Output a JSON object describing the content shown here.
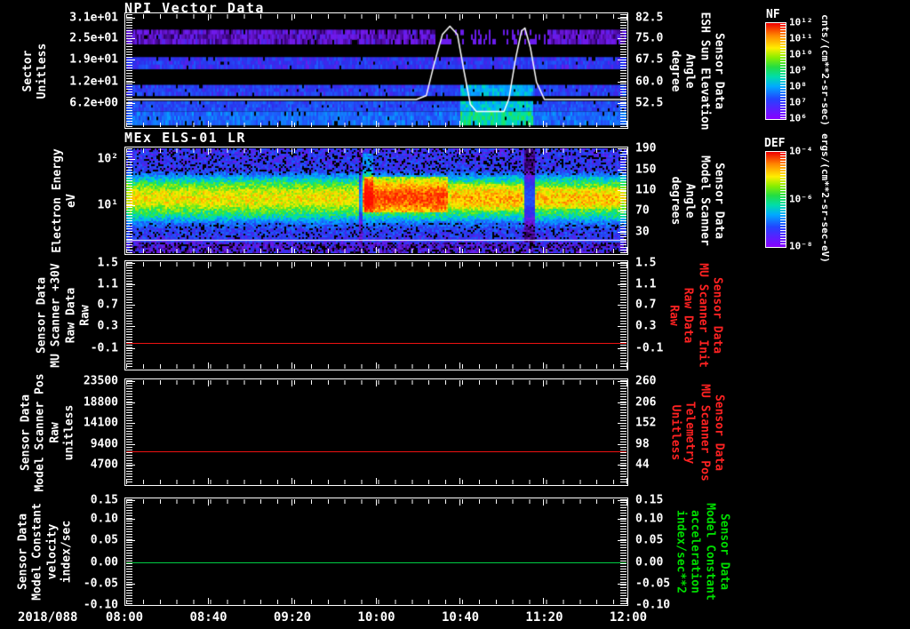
{
  "x_axis": {
    "date": "2018/088",
    "labels": [
      "08:00",
      "08:40",
      "09:20",
      "10:00",
      "10:40",
      "11:20",
      "12:00"
    ],
    "fracs": [
      0,
      0.1667,
      0.3333,
      0.5,
      0.6667,
      0.8333,
      1
    ]
  },
  "panels": [
    {
      "title": "NPI Vector Data",
      "left_label": [
        "Sector",
        "Unitless"
      ],
      "right_label": [
        "Sensor Data",
        "ESH Sun Elevation",
        "Angle",
        "degree"
      ],
      "right_color": "#ffffff",
      "left_ticks": [
        {
          "t": "3.1e+01",
          "f": 0.038
        },
        {
          "t": "2.5e+01",
          "f": 0.214
        },
        {
          "t": "1.9e+01",
          "f": 0.405
        },
        {
          "t": "1.2e+01",
          "f": 0.595
        },
        {
          "t": "6.2e+00",
          "f": 0.786
        }
      ],
      "right_ticks": [
        {
          "t": "82.5",
          "f": 0.038
        },
        {
          "t": "75.0",
          "f": 0.214
        },
        {
          "t": "67.5",
          "f": 0.405
        },
        {
          "t": "60.0",
          "f": 0.595
        },
        {
          "t": "52.5",
          "f": 0.786
        }
      ],
      "colorbar": {
        "title": "NF",
        "units": "cnts/(cm**2-sr-sec)",
        "ticks": [
          {
            "t": "10¹²",
            "f": 0
          },
          {
            "t": "10¹¹",
            "f": 0.1667
          },
          {
            "t": "10¹⁰",
            "f": 0.3333
          },
          {
            "t": "10⁹",
            "f": 0.5
          },
          {
            "t": "10⁸",
            "f": 0.6667
          },
          {
            "t": "10⁷",
            "f": 0.8333
          },
          {
            "t": "10⁶",
            "f": 1
          }
        ]
      }
    },
    {
      "title": "MEx ELS-01 LR",
      "left_label": [
        "Electron Energy",
        "eV"
      ],
      "right_label": [
        "Sensor Data",
        "Model Scanner",
        "Angle",
        "degrees"
      ],
      "right_color": "#ffffff",
      "left_ticks": [
        {
          "t": "10²",
          "f": 0.107
        },
        {
          "t": "10¹",
          "f": 0.541
        }
      ],
      "right_ticks": [
        {
          "t": "190",
          "f": 0.01
        },
        {
          "t": "150",
          "f": 0.205
        },
        {
          "t": "110",
          "f": 0.4
        },
        {
          "t": "70",
          "f": 0.595
        },
        {
          "t": "30",
          "f": 0.79
        }
      ],
      "colorbar": {
        "title": "DEF",
        "units": "ergs/(cm**2-sr-sec-eV)",
        "ticks": [
          {
            "t": "10⁻⁴",
            "f": 0
          },
          {
            "t": "10⁻⁶",
            "f": 0.5
          },
          {
            "t": "10⁻⁸",
            "f": 1
          }
        ]
      }
    },
    {
      "left_label": [
        "Sensor Data",
        "MU Scanner +30V",
        "Raw Data",
        "Raw"
      ],
      "right_label": [
        "Sensor Data",
        "MU Scanner Init",
        "Raw Data",
        "Raw"
      ],
      "right_color": "#ff2222",
      "left_ticks": [
        {
          "t": "1.5",
          "f": 0.016
        },
        {
          "t": "1.1",
          "f": 0.21
        },
        {
          "t": "0.7",
          "f": 0.4
        },
        {
          "t": "0.3",
          "f": 0.6
        },
        {
          "t": "-0.1",
          "f": 0.8
        }
      ],
      "right_ticks": [
        {
          "t": "1.5",
          "f": 0.016
        },
        {
          "t": "1.1",
          "f": 0.21
        },
        {
          "t": "0.7",
          "f": 0.4
        },
        {
          "t": "0.3",
          "f": 0.6
        },
        {
          "t": "-0.1",
          "f": 0.8
        }
      ],
      "line": {
        "frac": 0.75,
        "color": "#ee1111"
      }
    },
    {
      "left_label": [
        "Sensor Data",
        "Model Scanner Pos",
        "Raw",
        "unitless"
      ],
      "right_label": [
        "Sensor Data",
        "MU Scanner Pos",
        "Telemetry",
        "Unitless"
      ],
      "right_color": "#ff2222",
      "left_ticks": [
        {
          "t": "23500",
          "f": 0.017
        },
        {
          "t": "18800",
          "f": 0.215
        },
        {
          "t": "14100",
          "f": 0.41
        },
        {
          "t": "9400",
          "f": 0.61
        },
        {
          "t": "4700",
          "f": 0.81
        }
      ],
      "right_ticks": [
        {
          "t": "260",
          "f": 0.017
        },
        {
          "t": "206",
          "f": 0.215
        },
        {
          "t": "152",
          "f": 0.41
        },
        {
          "t": "98",
          "f": 0.61
        },
        {
          "t": "44",
          "f": 0.81
        }
      ],
      "line": {
        "frac": 0.68,
        "color": "#ee1111"
      }
    },
    {
      "left_label": [
        "Sensor Data",
        "Model Constant",
        "velocity",
        "index/sec"
      ],
      "right_label": [
        "Sensor Data",
        "Model Constant",
        "acceleration",
        "index/sec**2"
      ],
      "right_color": "#00dd00",
      "left_ticks": [
        {
          "t": "0.15",
          "f": 0.016
        },
        {
          "t": "0.10",
          "f": 0.19
        },
        {
          "t": "0.05",
          "f": 0.39
        },
        {
          "t": "0.00",
          "f": 0.6
        },
        {
          "t": "-0.05",
          "f": 0.8
        },
        {
          "t": "-0.10",
          "f": 1
        }
      ],
      "right_ticks": [
        {
          "t": "0.15",
          "f": 0.016
        },
        {
          "t": "0.10",
          "f": 0.19
        },
        {
          "t": "0.05",
          "f": 0.39
        },
        {
          "t": "0.00",
          "f": 0.6
        },
        {
          "t": "-0.05",
          "f": 0.8
        },
        {
          "t": "-0.10",
          "f": 1
        }
      ],
      "line": {
        "frac": 0.598,
        "color": "#00cc44"
      }
    }
  ],
  "chart_data": [
    {
      "type": "heatmap",
      "title": "NPI Vector Data",
      "x_start": "2018/088 08:00",
      "x_end": "2018/088 12:00",
      "x_tick_labels": [
        "08:00",
        "08:40",
        "09:20",
        "10:00",
        "10:40",
        "11:20",
        "12:00"
      ],
      "ylabel": "Sector Unitless",
      "y_ticks": [
        31,
        25,
        19,
        12,
        6.2
      ],
      "y2label": "Sensor Data ESH Sun Elevation Angle degree",
      "y2_ticks": [
        82.5,
        75.0,
        67.5,
        60.0,
        52.5
      ],
      "colorbar": {
        "name": "NF",
        "units": "cnts/(cm**2-sr-sec)",
        "log_ticks": [
          1000000000000.0,
          100000000000.0,
          10000000000.0,
          1000000000.0,
          100000000.0,
          10000000.0,
          1000000.0
        ]
      },
      "bands": [
        {
          "y0": 0.137,
          "y1": 0.26,
          "v": 0.16,
          "sparse": true
        },
        {
          "y0": 0.38,
          "y1": 0.48,
          "v": 0.27
        },
        {
          "y0": 0.626,
          "y1": 0.718,
          "v": 0.29,
          "bright": true
        },
        {
          "y0": 0.77,
          "y1": 0.855,
          "v": 0.31,
          "bright": true
        },
        {
          "y0": 0.863,
          "y1": 0.977,
          "v": 0.36,
          "bright": true
        }
      ],
      "bright_region": [
        0.665,
        0.81
      ],
      "sparse_region": [
        0.617,
        0.845
      ],
      "overlay_line": {
        "color": "#ffffff",
        "baseline_deg": 52.5,
        "points": [
          [
            0,
            0.756
          ],
          [
            0.58,
            0.756
          ],
          [
            0.6,
            0.72
          ],
          [
            0.615,
            0.45
          ],
          [
            0.632,
            0.18
          ],
          [
            0.647,
            0.107
          ],
          [
            0.662,
            0.18
          ],
          [
            0.675,
            0.5
          ],
          [
            0.688,
            0.8
          ],
          [
            0.7,
            0.863
          ],
          [
            0.755,
            0.863
          ],
          [
            0.765,
            0.75
          ],
          [
            0.778,
            0.4
          ],
          [
            0.79,
            0.15
          ],
          [
            0.797,
            0.122
          ],
          [
            0.808,
            0.3
          ],
          [
            0.82,
            0.6
          ],
          [
            0.836,
            0.756
          ],
          [
            1,
            0.756
          ]
        ]
      }
    },
    {
      "type": "heatmap",
      "title": "MEx ELS-01 LR",
      "ylabel": "Electron Energy eV",
      "y_ticks": [
        100,
        10
      ],
      "y_scale": "log",
      "y2label": "Sensor Data Model Scanner Angle degrees",
      "y2_ticks": [
        190,
        150,
        110,
        70,
        30
      ],
      "colorbar": {
        "name": "DEF",
        "units": "ergs/(cm**2-sr-sec-eV)",
        "log_ticks": [
          0.0001,
          1e-06,
          1e-08
        ]
      },
      "profile": [
        [
          0,
          0.26
        ],
        [
          0.2,
          0.28
        ],
        [
          0.27,
          0.45
        ],
        [
          0.33,
          0.58
        ],
        [
          0.4,
          0.68
        ],
        [
          0.46,
          0.72
        ],
        [
          0.52,
          0.7
        ],
        [
          0.58,
          0.6
        ],
        [
          0.64,
          0.52
        ],
        [
          0.7,
          0.38
        ],
        [
          0.76,
          0.3
        ],
        [
          0.86,
          0.27
        ],
        [
          1,
          0.24
        ]
      ],
      "white_line_frac": 0.877,
      "hot_regions": [
        {
          "x0": 0.476,
          "x1": 0.64,
          "y0": 0.26,
          "y1": 0.6,
          "b": 0.2
        },
        {
          "x0": 0.468,
          "x1": 0.492,
          "y0": 0.05,
          "y1": 0.6,
          "b": 0.16
        },
        {
          "x0": 0.65,
          "x1": 0.79,
          "y0": 0.33,
          "y1": 0.58,
          "b": 0.07
        },
        {
          "x0": 0.82,
          "x1": 0.99,
          "y0": 0.36,
          "y1": 0.56,
          "b": 0.05
        }
      ],
      "dim_regions": [
        {
          "x0": 0.795,
          "x1": 0.815,
          "f": 0.45
        },
        {
          "x0": 0.462,
          "x1": 0.472,
          "f": 0.55
        }
      ]
    },
    {
      "type": "line",
      "label": "Sensor Data MU Scanner +30V Raw Data Raw",
      "value": 0.0,
      "color": "#ee1111",
      "y_ticks": [
        1.5,
        1.1,
        0.7,
        0.3,
        -0.1
      ],
      "y2_label": "Sensor Data MU Scanner Init Raw Data Raw"
    },
    {
      "type": "line",
      "label": "Sensor Data Model Scanner Pos Raw unitless",
      "value": 7800,
      "color": "#ee1111",
      "y_ticks": [
        23500,
        18800,
        14100,
        9400,
        4700
      ],
      "y2_label": "Sensor Data MU Scanner Pos Telemetry Unitless",
      "y2_ticks": [
        260,
        206,
        152,
        98,
        44
      ],
      "y2_value": 79
    },
    {
      "type": "line",
      "label": "Sensor Data Model Constant velocity index/sec",
      "value": 0.0,
      "color": "#00cc44",
      "y_ticks": [
        0.15,
        0.1,
        0.05,
        0.0,
        -0.05,
        -0.1
      ],
      "y2_label": "Sensor Data Model Constant acceleration index/sec**2",
      "y2_value": 0.0
    }
  ]
}
